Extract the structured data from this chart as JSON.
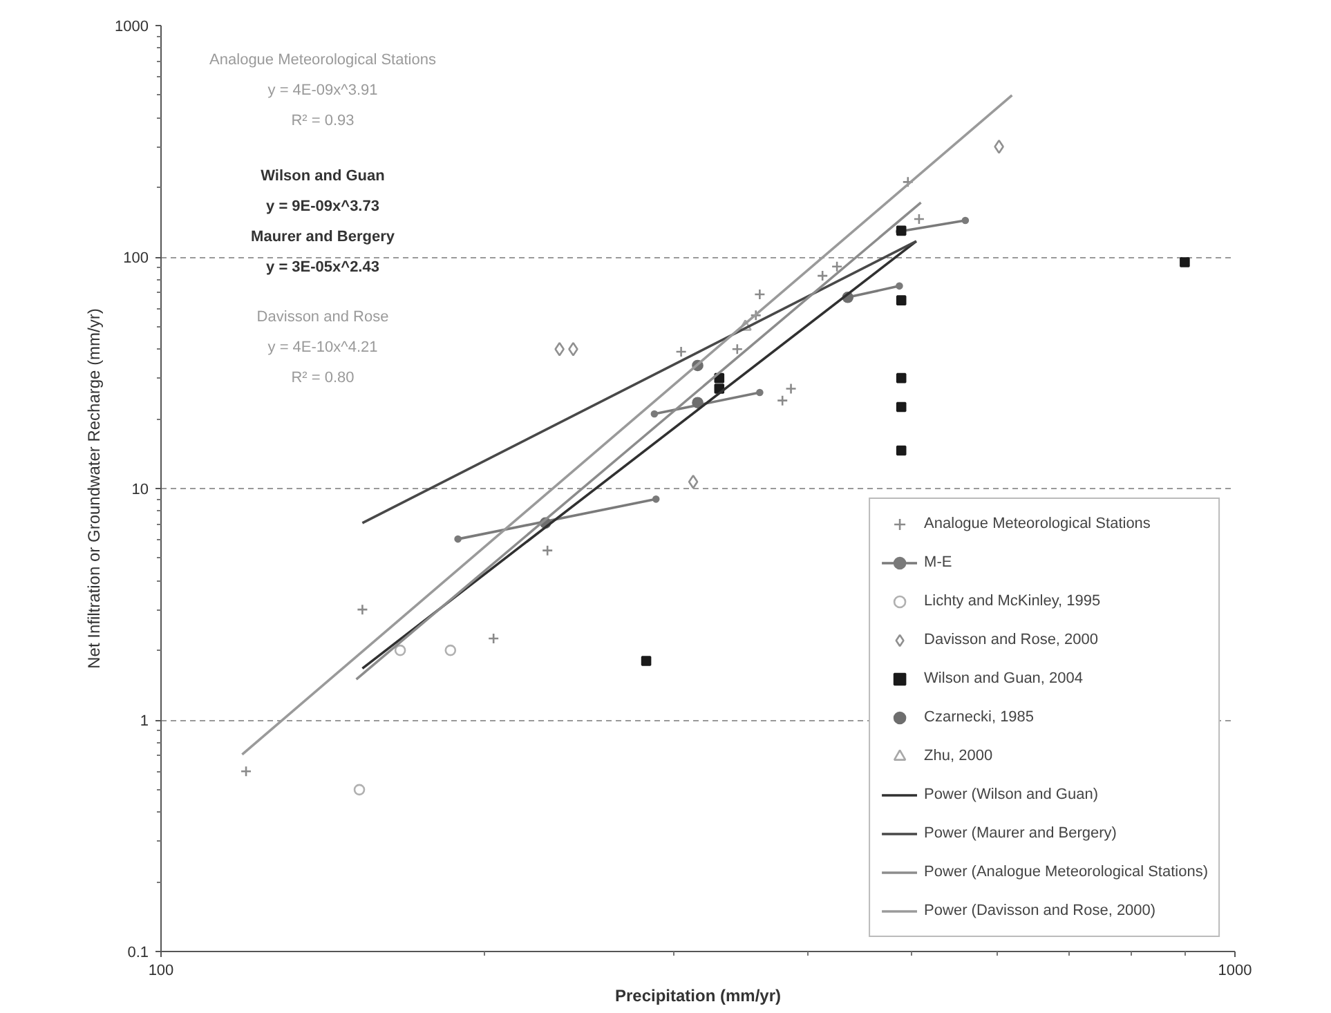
{
  "chart_data": {
    "type": "scatter",
    "xlabel": "Precipitation (mm/yr)",
    "ylabel": "Net Infiltration or Groundwater Recharge (mm/yr)",
    "log": "xy",
    "xlim": [
      100,
      1000
    ],
    "ylim": [
      0.1,
      1000
    ],
    "xticks": [
      100,
      1000
    ],
    "yticks": [
      0.1,
      1,
      10,
      100,
      1000
    ],
    "grid": "y",
    "legend": "bottom right",
    "annotations": [
      "Analogue Meteorological Stations",
      "y = 4E-09x^3.91",
      "R² = 0.93",
      "Wilson and Guan",
      "y = 9E-09x^3.73",
      "Maurer and Bergery",
      "y = 3E-05x^2.43",
      "Davisson and Rose",
      "y = 4E-10x^4.21",
      "R² = 0.80"
    ],
    "series": [
      {
        "name": "Analogue Meteorological Stations",
        "marker": "cross",
        "color": "#8a8a8a",
        "x": [
          120,
          154,
          204,
          229,
          305,
          344,
          358,
          361,
          379,
          386,
          413,
          426,
          496,
          508
        ],
        "values": [
          0.6,
          3.0,
          2.25,
          5.4,
          39,
          40,
          56,
          69,
          24,
          27,
          83,
          91,
          211,
          146
        ]
      },
      {
        "name": "M-E",
        "type": "line",
        "marker": "circle",
        "color": "#7a7a7a",
        "x": [
          189,
          289,
          null,
          288,
          361,
          null,
          436,
          487,
          null,
          487,
          561
        ],
        "values": [
          6.05,
          9.0,
          null,
          21,
          26,
          null,
          67,
          75,
          null,
          129,
          144
        ]
      },
      {
        "name": "Lichty and McKinley, 1995",
        "marker": "circle",
        "color": "#b0b0b0",
        "x": [
          153,
          167,
          186
        ],
        "values": [
          0.5,
          2.0,
          2.0
        ]
      },
      {
        "name": "Davisson and Rose, 2000",
        "marker": "diamond",
        "color": "#909090",
        "x": [
          235,
          242,
          313,
          603
        ],
        "values": [
          40,
          40,
          10.7,
          300
        ]
      },
      {
        "name": "Wilson and Guan, 2004",
        "marker": "square",
        "color": "#1a1a1a",
        "x": [
          283,
          331,
          331,
          489,
          489,
          489,
          489,
          489,
          898
        ],
        "values": [
          1.8,
          30,
          27,
          130,
          65,
          30,
          22.5,
          14.6,
          95
        ]
      },
      {
        "name": "Czarnecki, 1985",
        "marker": "circle",
        "color": "#6e6e6e",
        "x": [
          228,
          316,
          316,
          436
        ],
        "values": [
          7.1,
          34,
          23.5,
          67
        ]
      },
      {
        "name": "Zhu, 2000",
        "marker": "triangle",
        "color": "#a8a8a8",
        "x": [
          350
        ],
        "values": [
          50
        ]
      },
      {
        "name": "Power (Wilson and Guan)",
        "type": "line",
        "color": "#303030",
        "x": [
          154,
          505
        ],
        "values": [
          1.67,
          117
        ]
      },
      {
        "name": "Power (Maurer and Bergery)",
        "type": "line",
        "color": "#484848",
        "x": [
          154,
          505
        ],
        "values": [
          7.1,
          117
        ]
      },
      {
        "name": "Power (Analogue Meteorological Stations)",
        "type": "line",
        "color": "#8c8c8c",
        "x": [
          152,
          510
        ],
        "values": [
          1.5,
          172
        ]
      },
      {
        "name": "Power (Davisson and Rose, 2000)",
        "type": "line",
        "color": "#9a9a9a",
        "x": [
          119,
          620
        ],
        "values": [
          0.71,
          500
        ]
      }
    ]
  }
}
